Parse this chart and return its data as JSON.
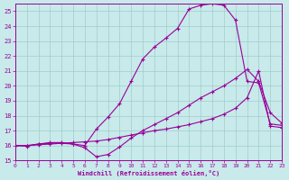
{
  "xlabel": "Windchill (Refroidissement éolien,°C)",
  "bg_color": "#c8eaea",
  "line_color": "#990099",
  "grid_color": "#a0cccc",
  "xlim": [
    0,
    23
  ],
  "ylim": [
    15,
    25.5
  ],
  "xticks": [
    0,
    1,
    2,
    3,
    4,
    5,
    6,
    7,
    8,
    9,
    10,
    11,
    12,
    13,
    14,
    15,
    16,
    17,
    18,
    19,
    20,
    21,
    22,
    23
  ],
  "yticks": [
    15,
    16,
    17,
    18,
    19,
    20,
    21,
    22,
    23,
    24,
    25
  ],
  "curve1_x": [
    0,
    1,
    2,
    3,
    4,
    5,
    6,
    7,
    8,
    9,
    10,
    11,
    12,
    13,
    14,
    15,
    16,
    17,
    18,
    19,
    20,
    21,
    22,
    23
  ],
  "curve1_y": [
    16.0,
    16.0,
    16.1,
    16.2,
    16.2,
    16.1,
    15.85,
    15.25,
    15.4,
    15.9,
    16.5,
    17.0,
    17.4,
    17.8,
    18.2,
    18.7,
    19.2,
    19.6,
    20.0,
    20.5,
    21.1,
    20.3,
    18.2,
    17.5
  ],
  "curve2_x": [
    0,
    1,
    2,
    3,
    4,
    5,
    6,
    7,
    8,
    9,
    10,
    11,
    12,
    13,
    14,
    15,
    16,
    17,
    18,
    19,
    20,
    21,
    22,
    23
  ],
  "curve2_y": [
    16.0,
    15.95,
    16.1,
    16.15,
    16.15,
    16.1,
    16.0,
    17.1,
    17.9,
    18.8,
    20.3,
    21.8,
    22.6,
    23.2,
    23.85,
    25.15,
    25.4,
    25.5,
    25.4,
    24.4,
    20.3,
    20.2,
    17.45,
    17.35
  ],
  "curve3_x": [
    0,
    1,
    2,
    3,
    4,
    5,
    6,
    7,
    8,
    9,
    10,
    11,
    12,
    13,
    14,
    15,
    16,
    17,
    18,
    19,
    20,
    21,
    22,
    23
  ],
  "curve3_y": [
    16.0,
    16.0,
    16.05,
    16.1,
    16.15,
    16.2,
    16.25,
    16.3,
    16.4,
    16.55,
    16.7,
    16.85,
    17.0,
    17.1,
    17.25,
    17.4,
    17.6,
    17.8,
    18.1,
    18.5,
    19.2,
    21.0,
    17.3,
    17.2
  ]
}
